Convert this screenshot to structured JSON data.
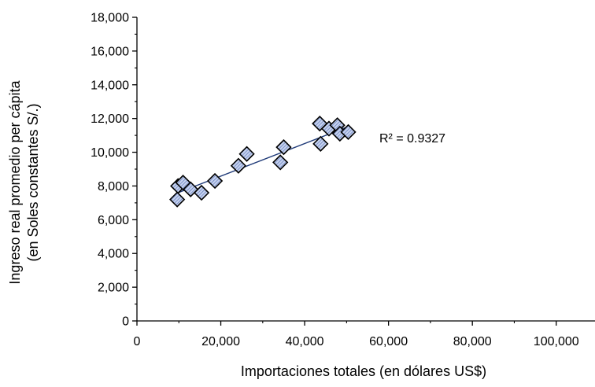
{
  "chart_data": {
    "type": "scatter",
    "xlabel": "Importaciones totales  (en dólares US$)",
    "ylabel_lines": [
      "Ingreso real promedio per cápita",
      "(en Soles constantes S/.)"
    ],
    "xlim": [
      0,
      110000
    ],
    "ylim": [
      0,
      18000
    ],
    "x_ticks": [
      0,
      20000,
      40000,
      60000,
      80000,
      100000
    ],
    "x_tick_labels": [
      "0",
      "20,000",
      "40,000",
      "60,000",
      "80,000",
      "100,000"
    ],
    "y_ticks": [
      0,
      2000,
      4000,
      6000,
      8000,
      10000,
      12000,
      14000,
      16000,
      18000
    ],
    "y_tick_labels": [
      "0",
      "2,000",
      "4,000",
      "6,000",
      "8,000",
      "10,000",
      "12,000",
      "14,000",
      "16,000",
      "18,000"
    ],
    "points": [
      {
        "x": 9600,
        "y": 7200
      },
      {
        "x": 9800,
        "y": 8000
      },
      {
        "x": 11000,
        "y": 8200
      },
      {
        "x": 12800,
        "y": 7800
      },
      {
        "x": 15400,
        "y": 7600
      },
      {
        "x": 18600,
        "y": 8300
      },
      {
        "x": 24200,
        "y": 9200
      },
      {
        "x": 26200,
        "y": 9900
      },
      {
        "x": 34200,
        "y": 9400
      },
      {
        "x": 35000,
        "y": 10300
      },
      {
        "x": 43600,
        "y": 11700
      },
      {
        "x": 43800,
        "y": 10500
      },
      {
        "x": 45800,
        "y": 11400
      },
      {
        "x": 47800,
        "y": 11600
      },
      {
        "x": 48400,
        "y": 11100
      },
      {
        "x": 50400,
        "y": 11200
      }
    ],
    "trendline": {
      "type": "linear",
      "x": [
        9600,
        50400
      ],
      "y": [
        7580,
        11520
      ]
    },
    "annotation": "R² = 0.9327",
    "grid": false,
    "legend": "none",
    "colors": {
      "marker_fill": "#c7d3ef",
      "marker_hatch": "#5f78b8",
      "marker_stroke": "#000000",
      "trendline": "#1f3a78",
      "axis": "#000000"
    }
  }
}
